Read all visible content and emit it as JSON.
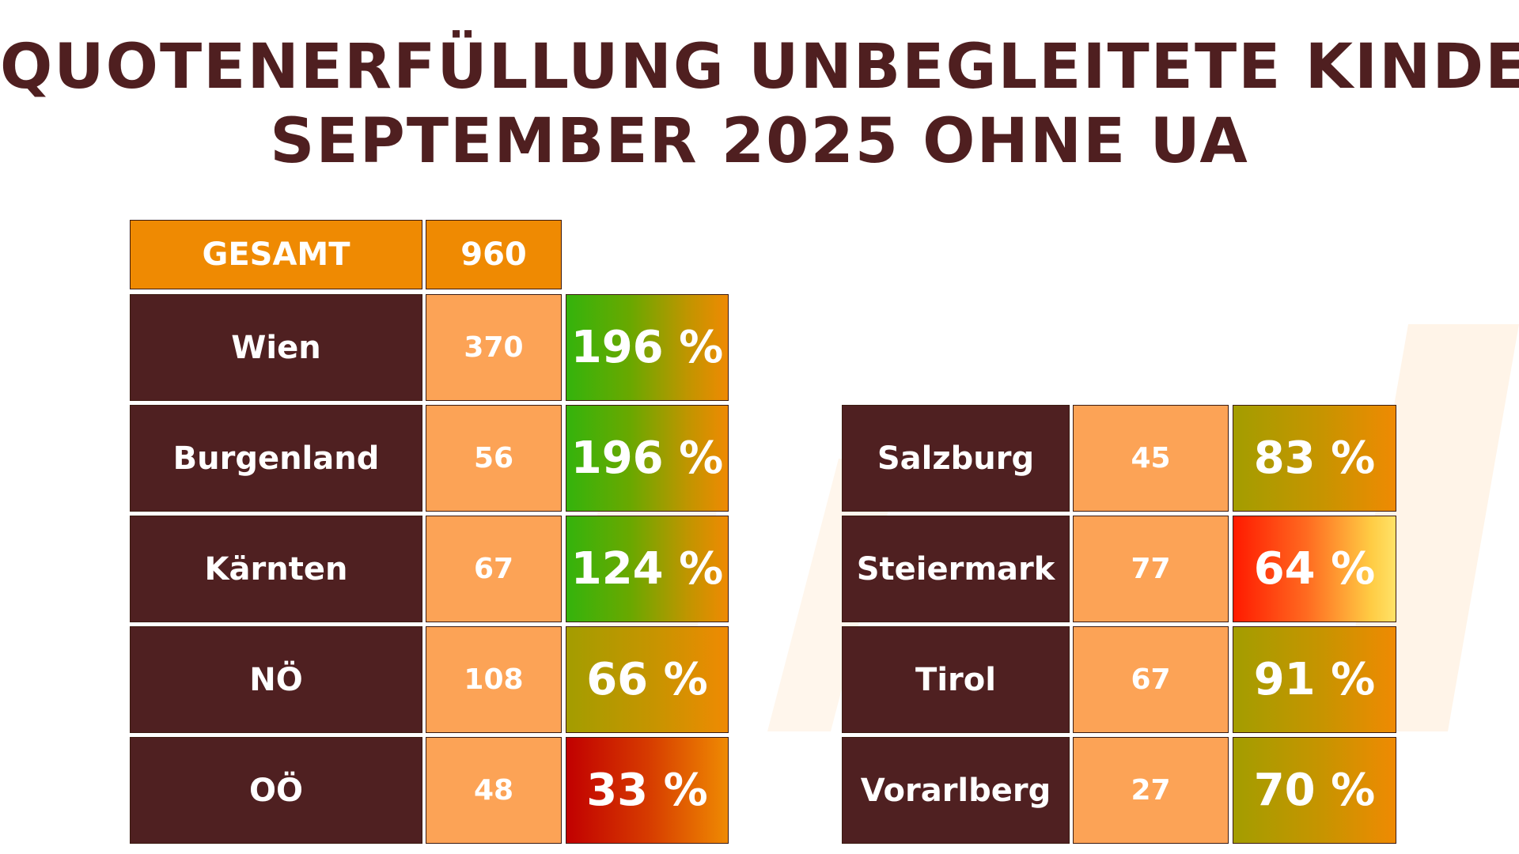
{
  "title": {
    "line1": "QUOTENERFÜLLUNG UNBEGLEITETE KINDER",
    "line2": "SEPTEMBER 2025 OHNE UA"
  },
  "total": {
    "label": "GESAMT",
    "value": "960"
  },
  "left_table": [
    {
      "state": "Wien",
      "count": "370",
      "quota": "196 %",
      "quota_value": 196
    },
    {
      "state": "Burgenland",
      "count": "56",
      "quota": "196 %",
      "quota_value": 196
    },
    {
      "state": "Kärnten",
      "count": "67",
      "quota": "124 %",
      "quota_value": 124
    },
    {
      "state": "NÖ",
      "count": "108",
      "quota": "66 %",
      "quota_value": 66
    },
    {
      "state": "OÖ",
      "count": "48",
      "quota": "33 %",
      "quota_value": 33
    }
  ],
  "right_table": [
    {
      "state": "Salzburg",
      "count": "45",
      "quota": "83 %",
      "quota_value": 83
    },
    {
      "state": "Steiermark",
      "count": "77",
      "quota": "64 %",
      "quota_value": 64
    },
    {
      "state": "Tirol",
      "count": "67",
      "quota": "91 %",
      "quota_value": 91
    },
    {
      "state": "Vorarlberg",
      "count": "27",
      "quota": "70 %",
      "quota_value": 70
    }
  ],
  "colors": {
    "header": "#ef8a02",
    "name_cell": "#4f2021",
    "count_cell": "#fca356",
    "title_text": "#4f1f20",
    "watermark": "#fff3e6"
  }
}
